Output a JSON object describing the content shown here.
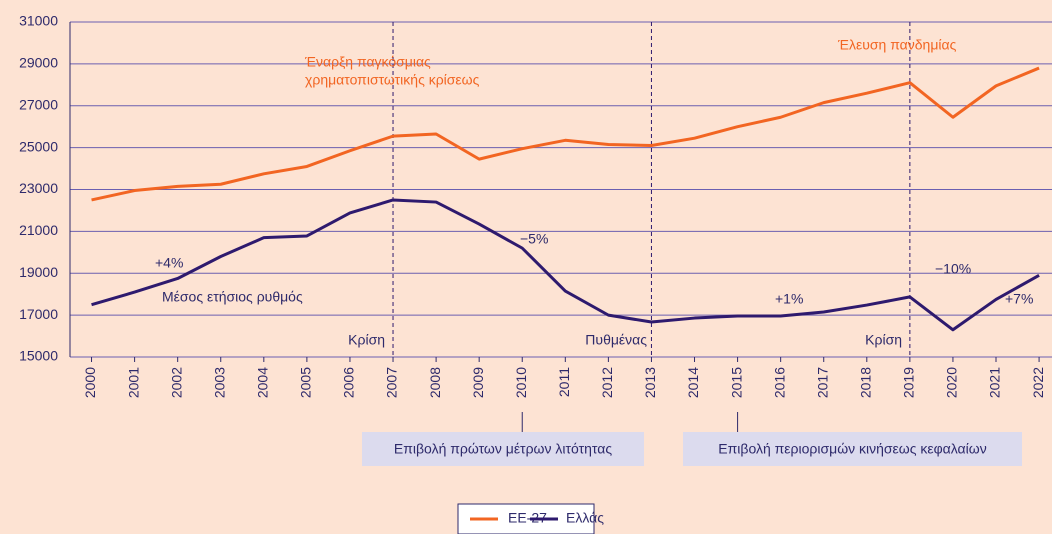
{
  "chart_data": {
    "type": "line",
    "x": [
      2000,
      2001,
      2002,
      2003,
      2004,
      2005,
      2006,
      2007,
      2008,
      2009,
      2010,
      2011,
      2012,
      2013,
      2014,
      2015,
      2016,
      2017,
      2018,
      2019,
      2020,
      2021,
      2022
    ],
    "series": [
      {
        "name": "ΕΕ-27",
        "color": "#f26522",
        "values": [
          22500,
          22950,
          23150,
          23250,
          23750,
          24100,
          24850,
          25550,
          25650,
          24450,
          24950,
          25350,
          25150,
          25100,
          25450,
          26000,
          26450,
          27150,
          27600,
          28100,
          26450,
          27950,
          28800
        ]
      },
      {
        "name": "Ελλάς",
        "color": "#2e1a6e",
        "values": [
          17500,
          18100,
          18750,
          19800,
          20700,
          20780,
          21880,
          22500,
          22400,
          21350,
          20200,
          18150,
          17000,
          16670,
          16860,
          16960,
          16960,
          17150,
          17480,
          17870,
          16300,
          17750,
          18900
        ]
      }
    ],
    "xlim": [
      1999.5,
      2022.3
    ],
    "ylim": [
      15000,
      31000
    ],
    "yticks": [
      15000,
      17000,
      19000,
      21000,
      23000,
      25000,
      27000,
      29000,
      31000
    ],
    "grid": true,
    "annotations": [
      "Έναρξη παγκόσμιας",
      "χρηματοπιστωτικής κρίσεως",
      "Έλευση πανδημίας",
      "Κρίση",
      "Πυθμένας",
      "Κρίση",
      "+4%",
      "Μέσος ετήσιος ρυθμός",
      "−5%",
      "+1%",
      "−10%",
      "+7%"
    ],
    "callouts": [
      "Επιβολή πρώτων μέτρων λιτότητας",
      "Επιβολή περιορισμών κινήσεως κεφαλαίων"
    ]
  }
}
